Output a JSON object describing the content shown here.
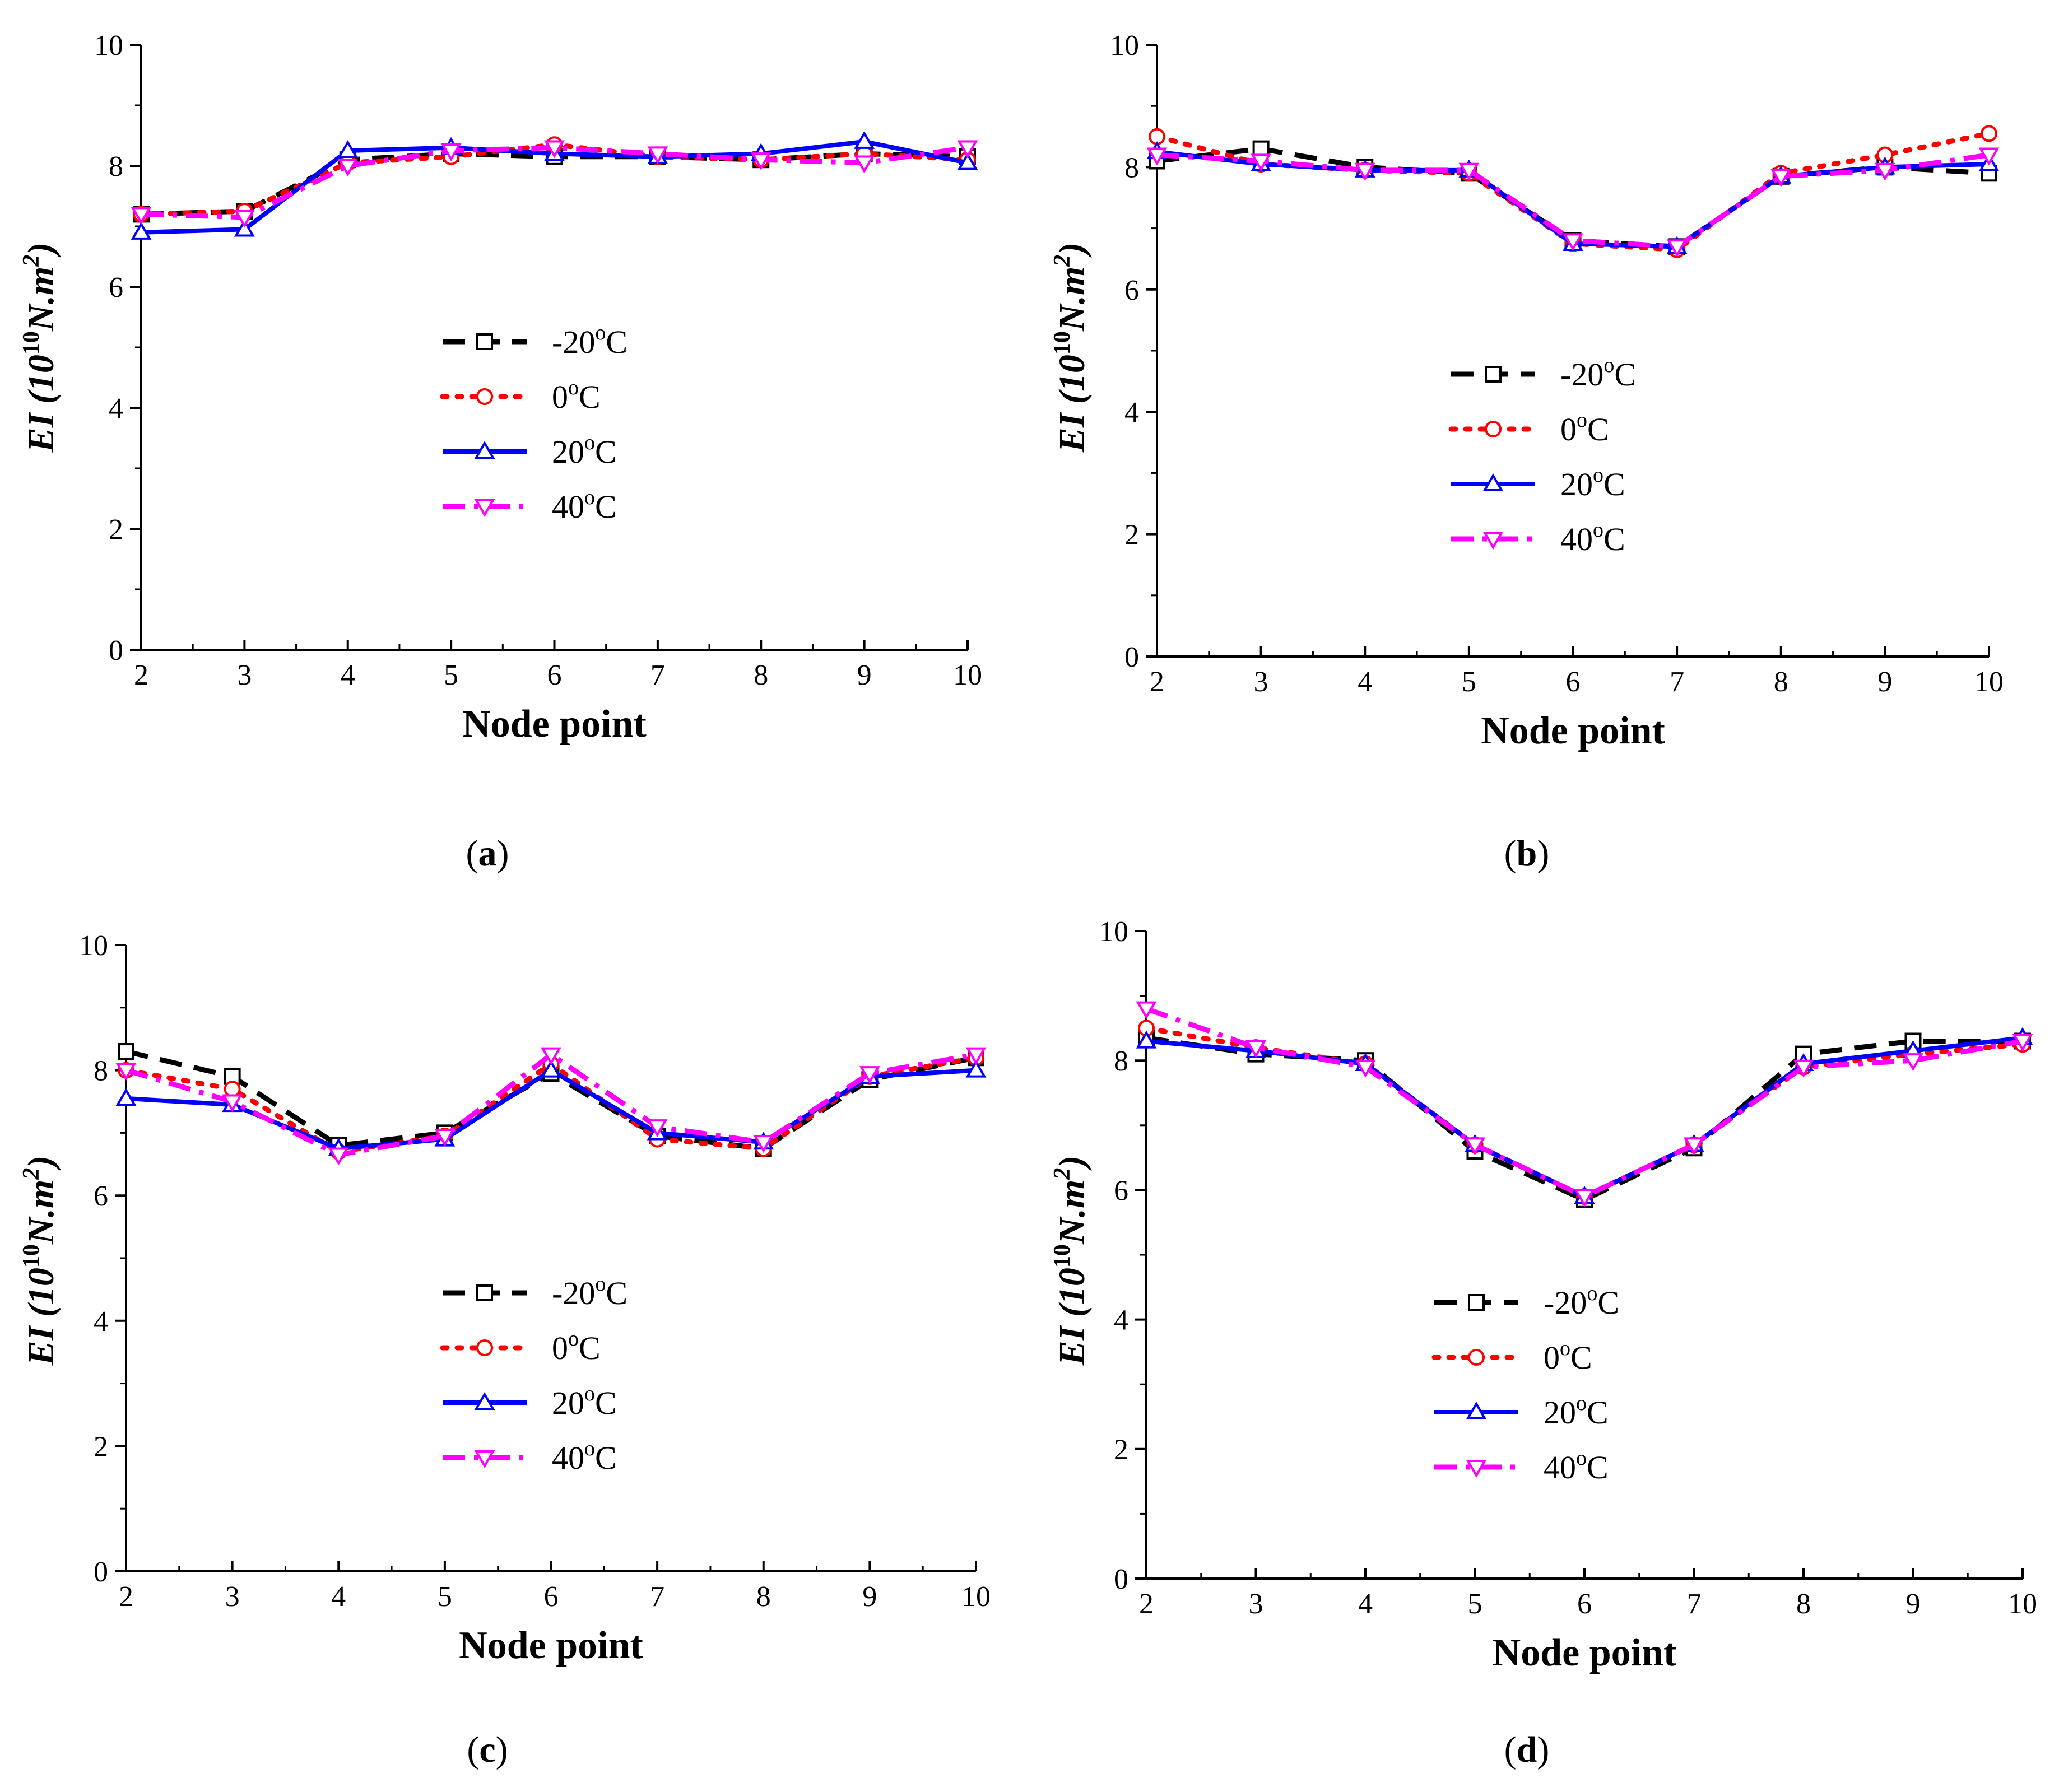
{
  "figure": {
    "x_title": "Node point",
    "y_title_prefix": "EI (10",
    "y_title_exp": "10",
    "y_title_unit": "N.m",
    "y_title_unit_exp": "2",
    "y_title_suffix": ")"
  },
  "series_styles": [
    {
      "name": "-20",
      "color": "#000000",
      "marker": "square",
      "dash": "dash"
    },
    {
      "name": "0",
      "color": "#ff0000",
      "marker": "circle",
      "dash": "dot"
    },
    {
      "name": "20",
      "color": "#0000ff",
      "marker": "triangle-up",
      "dash": "solid"
    },
    {
      "name": "40",
      "color": "#ff00ff",
      "marker": "triangle-down",
      "dash": "dashdot"
    }
  ],
  "legend": {
    "superscript": "o",
    "unit": "C"
  },
  "chart_data": [
    {
      "type": "line",
      "caption_pre": "(",
      "caption_letter": "a",
      "caption_post": ")",
      "xlabel": "Node point",
      "ylabel": "EI (10^10 N.m^2)",
      "xlim": [
        2,
        10
      ],
      "ylim": [
        0,
        10
      ],
      "x_ticks": [
        "2",
        "3",
        "4",
        "5",
        "6",
        "7",
        "8",
        "9",
        "10"
      ],
      "y_ticks": [
        "0",
        "2",
        "4",
        "6",
        "8",
        "10"
      ],
      "x": [
        2,
        3,
        4,
        5,
        6,
        7,
        8,
        9,
        10
      ],
      "series": [
        {
          "name": "-20°C",
          "values": [
            7.2,
            7.25,
            8.1,
            8.2,
            8.15,
            8.15,
            8.1,
            8.2,
            8.15
          ]
        },
        {
          "name": "0°C",
          "values": [
            7.2,
            7.25,
            8.05,
            8.15,
            8.35,
            8.15,
            8.1,
            8.2,
            8.1
          ]
        },
        {
          "name": "20°C",
          "values": [
            6.9,
            6.95,
            8.25,
            8.3,
            8.2,
            8.15,
            8.2,
            8.4,
            8.05
          ]
        },
        {
          "name": "40°C",
          "values": [
            7.2,
            7.15,
            8.0,
            8.25,
            8.3,
            8.2,
            8.1,
            8.05,
            8.3
          ]
        }
      ]
    },
    {
      "type": "line",
      "caption_pre": "(",
      "caption_letter": "b",
      "caption_post": ")",
      "xlabel": "Node point",
      "ylabel": "EI (10^10 N.m^2)",
      "xlim": [
        2,
        10
      ],
      "ylim": [
        0,
        10
      ],
      "x_ticks": [
        "2",
        "3",
        "4",
        "5",
        "6",
        "7",
        "8",
        "9",
        "10"
      ],
      "y_ticks": [
        "0",
        "2",
        "4",
        "6",
        "8",
        "10"
      ],
      "x": [
        2,
        3,
        4,
        5,
        6,
        7,
        8,
        9,
        10
      ],
      "series": [
        {
          "name": "-20°C",
          "values": [
            8.1,
            8.3,
            8.0,
            7.9,
            6.8,
            6.7,
            7.85,
            8.0,
            7.9
          ]
        },
        {
          "name": "0°C",
          "values": [
            8.5,
            8.05,
            7.95,
            7.9,
            6.75,
            6.65,
            7.9,
            8.2,
            8.55
          ]
        },
        {
          "name": "20°C",
          "values": [
            8.25,
            8.05,
            7.95,
            7.95,
            6.75,
            6.7,
            7.85,
            8.0,
            8.05
          ]
        },
        {
          "name": "40°C",
          "values": [
            8.2,
            8.1,
            7.95,
            7.95,
            6.8,
            6.7,
            7.85,
            7.95,
            8.2
          ]
        }
      ]
    },
    {
      "type": "line",
      "caption_pre": "(",
      "caption_letter": "c",
      "caption_post": ")",
      "xlabel": "Node point",
      "ylabel": "EI (10^10 N.m^2)",
      "xlim": [
        2,
        10
      ],
      "ylim": [
        0,
        10
      ],
      "x_ticks": [
        "2",
        "3",
        "4",
        "5",
        "6",
        "7",
        "8",
        "9",
        "10"
      ],
      "y_ticks": [
        "0",
        "2",
        "4",
        "6",
        "8",
        "10"
      ],
      "x": [
        2,
        3,
        4,
        5,
        6,
        7,
        8,
        9,
        10
      ],
      "series": [
        {
          "name": "-20°C",
          "values": [
            8.3,
            7.9,
            6.8,
            7.0,
            7.95,
            6.95,
            6.75,
            7.85,
            8.2
          ]
        },
        {
          "name": "0°C",
          "values": [
            8.0,
            7.7,
            6.7,
            6.95,
            8.1,
            6.9,
            6.75,
            7.9,
            8.2
          ]
        },
        {
          "name": "20°C",
          "values": [
            7.55,
            7.45,
            6.75,
            6.9,
            8.0,
            7.0,
            6.85,
            7.9,
            8.0
          ]
        },
        {
          "name": "40°C",
          "values": [
            8.0,
            7.5,
            6.65,
            6.95,
            8.25,
            7.1,
            6.85,
            7.95,
            8.25
          ]
        }
      ]
    },
    {
      "type": "line",
      "caption_pre": "(",
      "caption_letter": "d",
      "caption_post": ")",
      "xlabel": "Node point",
      "ylabel": "EI (10^10 N.m^2)",
      "xlim": [
        2,
        10
      ],
      "ylim": [
        0,
        10
      ],
      "x_ticks": [
        "2",
        "3",
        "4",
        "5",
        "6",
        "7",
        "8",
        "9",
        "10"
      ],
      "y_ticks": [
        "0",
        "2",
        "4",
        "6",
        "8",
        "10"
      ],
      "x": [
        2,
        3,
        4,
        5,
        6,
        7,
        8,
        9,
        10
      ],
      "series": [
        {
          "name": "-20°C",
          "values": [
            8.35,
            8.1,
            8.0,
            6.6,
            5.85,
            6.65,
            8.1,
            8.3,
            8.3
          ]
        },
        {
          "name": "0°C",
          "values": [
            8.5,
            8.2,
            7.95,
            6.7,
            5.9,
            6.7,
            7.9,
            8.1,
            8.25
          ]
        },
        {
          "name": "20°C",
          "values": [
            8.3,
            8.15,
            7.95,
            6.7,
            5.9,
            6.7,
            7.95,
            8.15,
            8.35
          ]
        },
        {
          "name": "40°C",
          "values": [
            8.8,
            8.2,
            7.9,
            6.7,
            5.9,
            6.7,
            7.9,
            8.0,
            8.3
          ]
        }
      ]
    }
  ]
}
